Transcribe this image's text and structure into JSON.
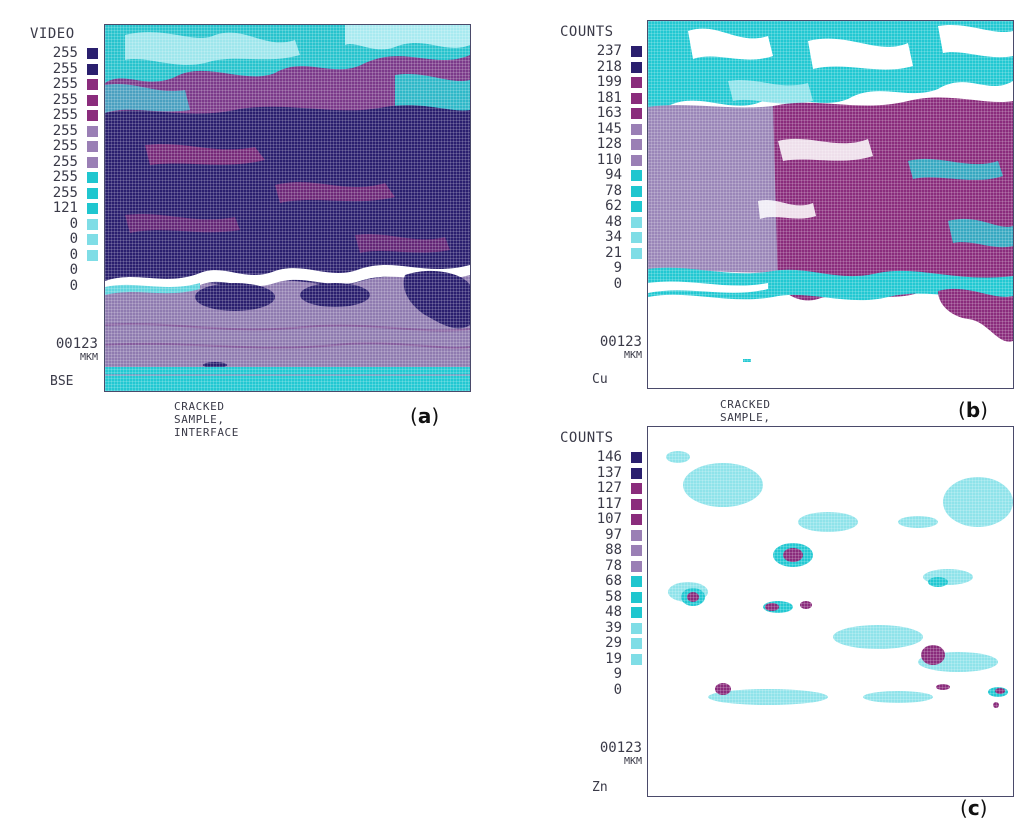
{
  "panels": {
    "a": {
      "scale_title": "VIDEO",
      "scale_values": [
        "255",
        "255",
        "255",
        "255",
        "255",
        "255",
        "255",
        "255",
        "255",
        "255",
        "121",
        "0",
        "0",
        "0",
        "0",
        "0"
      ],
      "magnification": "00123",
      "unit": "MKM",
      "detector": "BSE",
      "caption": "CRACKED SAMPLE, INTERFACE",
      "label_open": "(",
      "label_letter": "a",
      "label_close": ")"
    },
    "b": {
      "scale_title": "COUNTS",
      "scale_values": [
        "237",
        "218",
        "199",
        "181",
        "163",
        "145",
        "128",
        "110",
        "94",
        "78",
        "62",
        "48",
        "34",
        "21",
        "9",
        "0"
      ],
      "magnification": "00123",
      "unit": "MKM",
      "detector": "Cu",
      "caption": "CRACKED SAMPLE, INTERFACE",
      "label_open": "(",
      "label_letter": "b",
      "label_close": ")"
    },
    "c": {
      "scale_title": "COUNTS",
      "scale_values": [
        "146",
        "137",
        "127",
        "117",
        "107",
        "97",
        "88",
        "78",
        "68",
        "58",
        "48",
        "39",
        "29",
        "19",
        "9",
        "0"
      ],
      "magnification": "00123",
      "unit": "MKM",
      "detector": "Zn",
      "label_open": "(",
      "label_letter": "c",
      "label_close": ")"
    }
  },
  "swatch_colors": [
    "#2a1f6e",
    "#2a1f6e",
    "#8a2c7c",
    "#8a2c7c",
    "#8a2c7c",
    "#9a7fb5",
    "#9a7fb5",
    "#9a7fb5",
    "#1fc6cf",
    "#1fc6cf",
    "#1fc6cf",
    "#7fdde6",
    "#7fdde6",
    "#7fdde6",
    "#ffffff",
    "#ffffff"
  ],
  "colors": {
    "navy": "#2a1f6e",
    "magenta": "#8a2c7c",
    "lavender": "#9a86b8",
    "cyan": "#22c8d2",
    "light_cyan": "#8fe3ea"
  }
}
